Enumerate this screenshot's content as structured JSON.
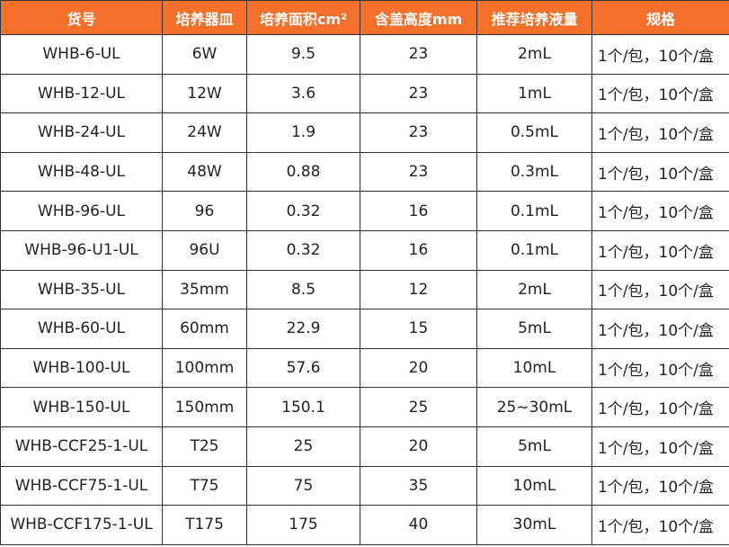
{
  "table": {
    "header": [
      "货号",
      "培养器皿",
      "培养面积cm²",
      "含盖高度mm",
      "推荐培养液量",
      "规格"
    ],
    "rows": [
      [
        "WHB-6-UL",
        "6W",
        "9.5",
        "23",
        "2mL",
        "1个/包，10个/盒"
      ],
      [
        "WHB-12-UL",
        "12W",
        "3.6",
        "23",
        "1mL",
        "1个/包，10个/盒"
      ],
      [
        "WHB-24-UL",
        "24W",
        "1.9",
        "23",
        "0.5mL",
        "1个/包，10个/盒"
      ],
      [
        "WHB-48-UL",
        "48W",
        "0.88",
        "23",
        "0.3mL",
        "1个/包，10个/盒"
      ],
      [
        "WHB-96-UL",
        "96",
        "0.32",
        "16",
        "0.1mL",
        "1个/包，10个/盒"
      ],
      [
        "WHB-96-U1-UL",
        "96U",
        "0.32",
        "16",
        "0.1mL",
        "1个/包，10个/盒"
      ],
      [
        "WHB-35-UL",
        "35mm",
        "8.5",
        "12",
        "2mL",
        "1个/包，10个/盒"
      ],
      [
        "WHB-60-UL",
        "60mm",
        "22.9",
        "15",
        "5mL",
        "1个/包，10个/盒"
      ],
      [
        "WHB-100-UL",
        "100mm",
        "57.6",
        "20",
        "10mL",
        "1个/包，10个/盒"
      ],
      [
        "WHB-150-UL",
        "150mm",
        "150.1",
        "25",
        "25~30mL",
        "1个/包，10个/盒"
      ],
      [
        "WHB-CCF25-1-UL",
        "T25",
        "25",
        "20",
        "5mL",
        "1个/包，10个/盒"
      ],
      [
        "WHB-CCF75-1-UL",
        "T75",
        "75",
        "35",
        "10mL",
        "1个/包，10个/盒"
      ],
      [
        "WHB-CCF175-1-UL",
        "T175",
        "175",
        "40",
        "30mL",
        "1个/包，10个/盒"
      ]
    ]
  }
}
